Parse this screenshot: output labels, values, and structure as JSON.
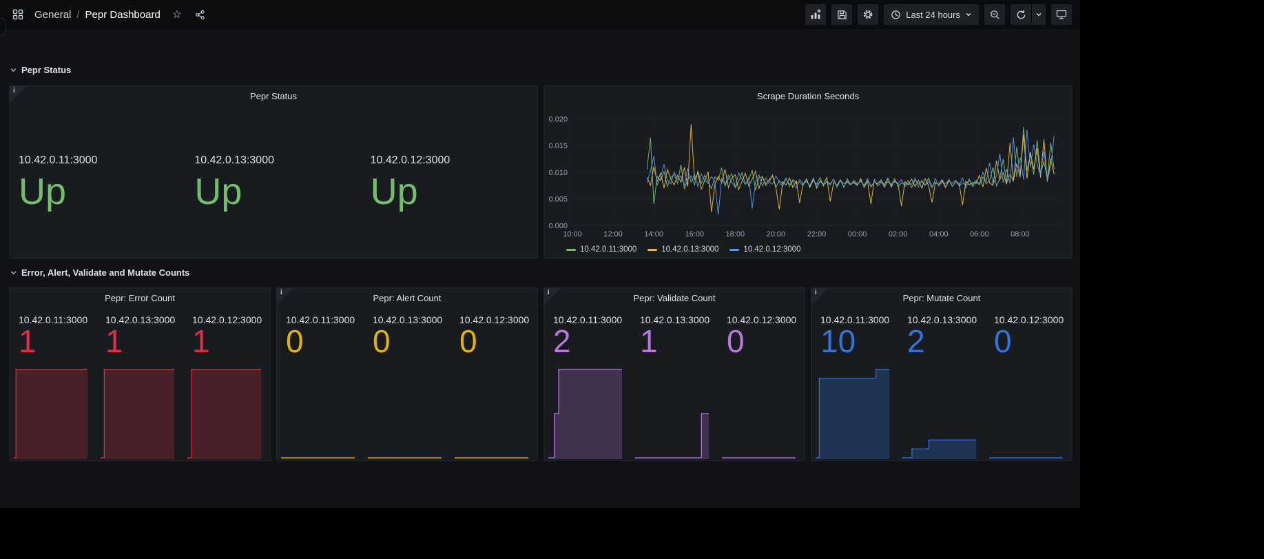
{
  "nav": {
    "breadcrumb_section": "General",
    "breadcrumb_sep": "/",
    "breadcrumb_title": "Pepr Dashboard",
    "time_label": "Last 24 hours"
  },
  "rows": [
    {
      "title": "Pepr Status"
    },
    {
      "title": "Error, Alert, Validate and Mutate Counts"
    }
  ],
  "chart_data": [
    {
      "id": "pepr-status",
      "type": "stat",
      "title": "Pepr Status",
      "color": "#73BF69",
      "stats": [
        {
          "label": "10.42.0.11:3000",
          "value": "Up"
        },
        {
          "label": "10.42.0.13:3000",
          "value": "Up"
        },
        {
          "label": "10.42.0.12:3000",
          "value": "Up"
        }
      ]
    },
    {
      "id": "scrape-duration",
      "type": "line",
      "title": "Scrape Duration Seconds",
      "y_unit": "seconds",
      "values_scale": 0.001,
      "x_range_hours": [
        0,
        24
      ],
      "x_start_hour": 3.667,
      "x_step_hours": 0.1667,
      "x_ticks": [
        {
          "h": 0,
          "label": "10:00"
        },
        {
          "h": 2,
          "label": "12:00"
        },
        {
          "h": 4,
          "label": "14:00"
        },
        {
          "h": 6,
          "label": "16:00"
        },
        {
          "h": 8,
          "label": "18:00"
        },
        {
          "h": 10,
          "label": "20:00"
        },
        {
          "h": 12,
          "label": "22:00"
        },
        {
          "h": 14,
          "label": "00:00"
        },
        {
          "h": 16,
          "label": "02:00"
        },
        {
          "h": 18,
          "label": "04:00"
        },
        {
          "h": 20,
          "label": "06:00"
        },
        {
          "h": 22,
          "label": "08:00"
        }
      ],
      "y_range": [
        0,
        21.5
      ],
      "y_ticks": [
        {
          "v": 0,
          "label": "0.000"
        },
        {
          "v": 5,
          "label": "0.005"
        },
        {
          "v": 10,
          "label": "0.010"
        },
        {
          "v": 15,
          "label": "0.015"
        },
        {
          "v": 20,
          "label": "0.020"
        }
      ],
      "legend_position": "bottom-left",
      "series": [
        {
          "name": "10.42.0.11:3000",
          "color": "#73BF69",
          "values": [
            10.5,
            16.5,
            4.0,
            9.2,
            8.4,
            10.1,
            7.3,
            9.0,
            9.6,
            7.9,
            11.4,
            6.8,
            8.7,
            9.3,
            7.6,
            10.2,
            7.9,
            9.4,
            8.2,
            6.9,
            9.1,
            8.5,
            10.8,
            7.4,
            8.8,
            9.7,
            7.1,
            8.3,
            9.9,
            7.7,
            8.6,
            10.4,
            6.6,
            8.9,
            9.2,
            7.5,
            8.1,
            9.5,
            7.2,
            8.4,
            7.8,
            8.9,
            7.3,
            8.6,
            7.9,
            8.2,
            7.5,
            8.8,
            7.1,
            8.5,
            7.7,
            9.0,
            7.4,
            8.3,
            7.8,
            8.7,
            7.2,
            8.4,
            7.9,
            8.1,
            7.6,
            8.5,
            7.8,
            8.3,
            7.5,
            8.7,
            7.2,
            8.1,
            7.9,
            8.6,
            7.4,
            8.2,
            7.7,
            8.8,
            7.3,
            8.0,
            7.6,
            8.4,
            7.1,
            8.5,
            7.8,
            8.2,
            7.5,
            8.9,
            7.3,
            8.1,
            7.7,
            8.6,
            7.2,
            8.3,
            7.9,
            8.5,
            7.4,
            8.0,
            7.6,
            8.7,
            7.3,
            8.2,
            7.6,
            9.1,
            7.8,
            8.5,
            10.9,
            7.4,
            8.8,
            12.5,
            7.9,
            9.6,
            8.3,
            14.8,
            9.0,
            18.5,
            10.2,
            13.4,
            9.5,
            16.0,
            9.8,
            12.0,
            8.8,
            15.5,
            10.5
          ]
        },
        {
          "name": "10.42.0.13:3000",
          "color": "#EAB839",
          "values": [
            9.0,
            7.5,
            11.0,
            8.2,
            9.8,
            7.0,
            10.5,
            8.8,
            7.6,
            9.4,
            8.1,
            10.9,
            7.3,
            19.0,
            8.5,
            9.9,
            6.8,
            8.4,
            10.1,
            2.5,
            7.7,
            9.2,
            8.0,
            10.6,
            7.1,
            8.9,
            9.5,
            6.7,
            8.3,
            9.8,
            7.4,
            8.7,
            10.2,
            6.9,
            9.1,
            7.8,
            8.6,
            9.3,
            7.0,
            3.0,
            8.2,
            7.6,
            8.9,
            7.1,
            8.4,
            4.2,
            7.9,
            8.5,
            7.3,
            8.8,
            7.0,
            8.3,
            7.7,
            9.0,
            4.5,
            8.1,
            7.5,
            8.6,
            7.2,
            8.4,
            7.8,
            8.0,
            7.5,
            8.8,
            7.1,
            8.3,
            4.0,
            8.6,
            7.4,
            8.1,
            7.7,
            8.9,
            7.2,
            8.4,
            7.8,
            3.6,
            8.2,
            7.6,
            8.7,
            7.3,
            8.5,
            7.0,
            8.8,
            7.5,
            4.3,
            8.0,
            7.7,
            8.4,
            7.1,
            8.6,
            7.4,
            8.2,
            7.9,
            3.8,
            8.3,
            7.6,
            8.1,
            7.9,
            9.4,
            7.2,
            10.8,
            8.0,
            7.5,
            12.2,
            8.6,
            9.9,
            7.7,
            15.5,
            8.4,
            11.6,
            9.2,
            17.0,
            8.8,
            13.8,
            10.5,
            14.5,
            9.0,
            16.2,
            8.2,
            12.5,
            9.6
          ]
        },
        {
          "name": "10.42.0.12:3000",
          "color": "#5794F2",
          "values": [
            8.0,
            10.2,
            13.0,
            7.6,
            9.0,
            11.5,
            8.4,
            7.8,
            10.0,
            8.7,
            9.3,
            7.5,
            10.7,
            8.1,
            9.6,
            7.3,
            9.7,
            8.5,
            7.9,
            9.2,
            8.3,
            2.0,
            8.8,
            7.6,
            9.4,
            8.0,
            7.2,
            9.9,
            8.6,
            7.7,
            9.0,
            3.2,
            8.2,
            9.5,
            7.4,
            8.9,
            8.1,
            7.8,
            9.3,
            8.0,
            7.4,
            8.8,
            7.7,
            8.3,
            7.0,
            8.6,
            7.9,
            8.2,
            7.5,
            8.9,
            7.2,
            8.4,
            7.8,
            8.1,
            7.6,
            8.7,
            7.3,
            8.5,
            7.1,
            8.8,
            7.7,
            8.2,
            7.6,
            8.5,
            7.2,
            8.8,
            7.4,
            8.1,
            7.8,
            8.4,
            7.1,
            8.7,
            7.5,
            8.2,
            7.9,
            8.6,
            7.3,
            8.0,
            7.7,
            8.9,
            7.2,
            8.5,
            7.6,
            8.3,
            7.0,
            8.8,
            7.4,
            8.1,
            7.8,
            8.6,
            7.3,
            8.2,
            7.5,
            8.9,
            7.1,
            8.4,
            7.7,
            8.5,
            7.8,
            10.0,
            8.2,
            11.8,
            7.6,
            9.3,
            13.5,
            8.0,
            10.6,
            7.9,
            16.5,
            9.1,
            12.8,
            8.6,
            18.0,
            10.9,
            15.2,
            11.5,
            9.4,
            14.0,
            8.4,
            11.2,
            16.8
          ]
        }
      ]
    },
    {
      "id": "error-count",
      "type": "stat-sparkline",
      "title": "Pepr: Error Count",
      "color": "#E02F44",
      "fill": "rgba(224,47,68,0.25)",
      "y_max": 1,
      "stats": [
        {
          "label": "10.42.0.11:3000",
          "value": "1",
          "steps": [
            [
              0,
              0
            ],
            [
              0.03,
              1
            ],
            [
              1,
              1
            ]
          ]
        },
        {
          "label": "10.42.0.13:3000",
          "value": "1",
          "steps": [
            [
              0,
              0
            ],
            [
              0.05,
              1
            ],
            [
              1,
              1
            ]
          ]
        },
        {
          "label": "10.42.0.12:3000",
          "value": "1",
          "steps": [
            [
              0,
              0
            ],
            [
              0.06,
              1
            ],
            [
              1,
              1
            ]
          ]
        }
      ]
    },
    {
      "id": "alert-count",
      "type": "stat-sparkline",
      "title": "Pepr: Alert Count",
      "color": "#E0B400",
      "fill": "rgba(224,180,0,0.25)",
      "y_max": 1,
      "stats": [
        {
          "label": "10.42.0.11:3000",
          "value": "0",
          "steps": [
            [
              0,
              0
            ],
            [
              1,
              0
            ]
          ]
        },
        {
          "label": "10.42.0.13:3000",
          "value": "0",
          "steps": [
            [
              0,
              0
            ],
            [
              1,
              0
            ]
          ]
        },
        {
          "label": "10.42.0.12:3000",
          "value": "0",
          "steps": [
            [
              0,
              0
            ],
            [
              1,
              0
            ]
          ]
        }
      ]
    },
    {
      "id": "validate-count",
      "type": "stat-sparkline",
      "title": "Pepr: Validate Count",
      "color": "#B877D9",
      "fill": "rgba(184,119,217,0.25)",
      "y_max": 2,
      "stats": [
        {
          "label": "10.42.0.11:3000",
          "value": "2",
          "steps": [
            [
              0,
              0
            ],
            [
              0.08,
              1
            ],
            [
              0.14,
              2
            ],
            [
              1,
              2
            ]
          ]
        },
        {
          "label": "10.42.0.13:3000",
          "value": "1",
          "steps": [
            [
              0,
              0
            ],
            [
              0.9,
              1
            ],
            [
              1,
              1
            ]
          ]
        },
        {
          "label": "10.42.0.12:3000",
          "value": "0",
          "steps": [
            [
              0,
              0
            ],
            [
              1,
              0
            ]
          ]
        }
      ]
    },
    {
      "id": "mutate-count",
      "type": "stat-sparkline",
      "title": "Pepr: Mutate Count",
      "color": "#3274D9",
      "fill": "rgba(50,116,217,0.28)",
      "y_max": 10,
      "stats": [
        {
          "label": "10.42.0.11:3000",
          "value": "10",
          "steps": [
            [
              0,
              0
            ],
            [
              0.05,
              9
            ],
            [
              0.82,
              10
            ],
            [
              1,
              10
            ]
          ]
        },
        {
          "label": "10.42.0.13:3000",
          "value": "2",
          "steps": [
            [
              0,
              0
            ],
            [
              0.13,
              1
            ],
            [
              0.36,
              2
            ],
            [
              1,
              2
            ]
          ]
        },
        {
          "label": "10.42.0.12:3000",
          "value": "0",
          "steps": [
            [
              0,
              0
            ],
            [
              1,
              0
            ]
          ]
        }
      ]
    }
  ]
}
